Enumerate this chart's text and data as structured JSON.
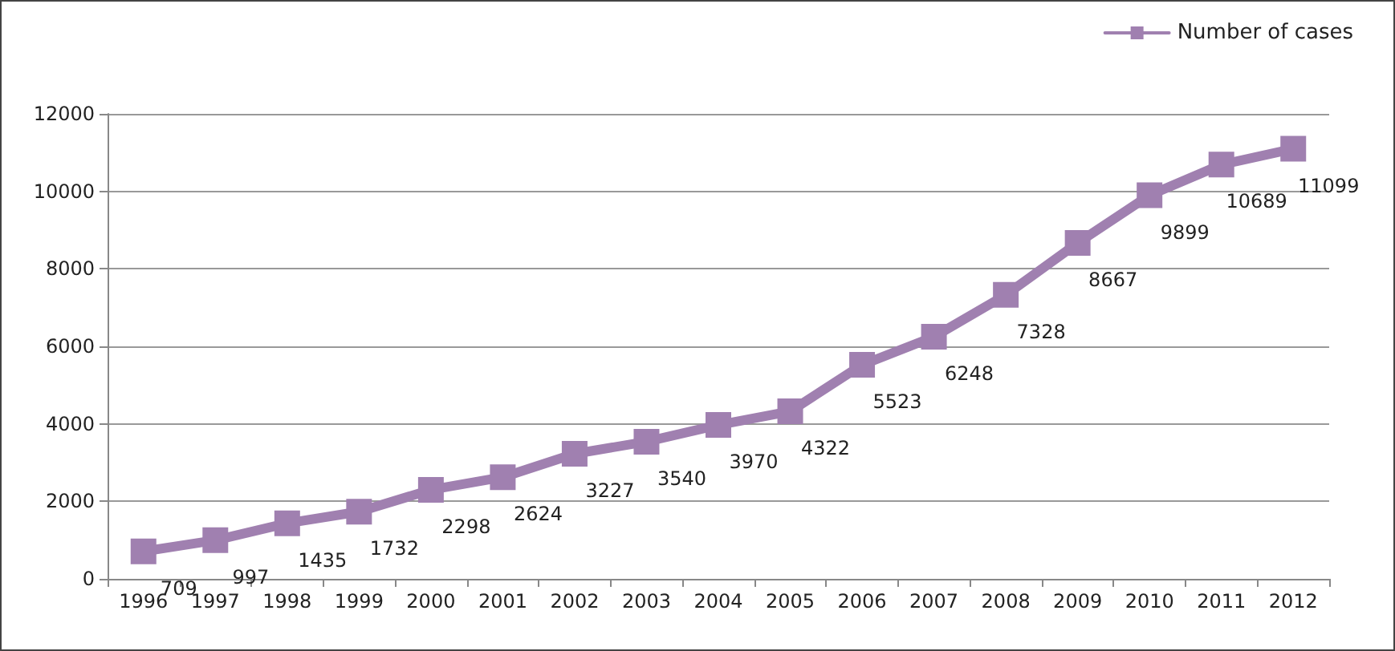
{
  "chart_data": {
    "type": "line",
    "categories": [
      "1996",
      "1997",
      "1998",
      "1999",
      "2000",
      "2001",
      "2002",
      "2003",
      "2004",
      "2005",
      "2006",
      "2007",
      "2008",
      "2009",
      "2010",
      "2011",
      "2012"
    ],
    "series": [
      {
        "name": "Number of cases",
        "color": "#a080b0",
        "values": [
          709,
          997,
          1435,
          1732,
          2298,
          2624,
          3227,
          3540,
          3970,
          4322,
          5523,
          6248,
          7328,
          8667,
          9899,
          10689,
          11099
        ]
      }
    ],
    "ylim": [
      0,
      12000
    ],
    "yticks": [
      0,
      2000,
      4000,
      6000,
      8000,
      10000,
      12000
    ],
    "grid": "y",
    "legend": "top right",
    "marker": "square",
    "line_style": "solid",
    "data_labels": true
  }
}
